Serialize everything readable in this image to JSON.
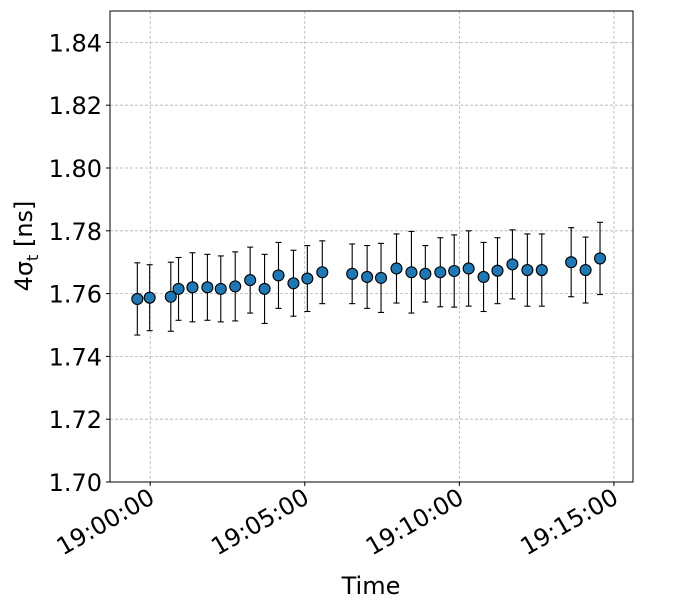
{
  "chart_data": {
    "type": "scatter",
    "title": "",
    "xlabel": "Time",
    "ylabel": "4σ",
    "ylabel_subscript": "t",
    "ylabel_unit": "[ns]",
    "ylim": [
      1.7,
      1.85
    ],
    "yticks": [
      1.7,
      1.72,
      1.74,
      1.76,
      1.78,
      1.8,
      1.82,
      1.84
    ],
    "ytick_labels": [
      "1.70",
      "1.72",
      "1.74",
      "1.76",
      "1.78",
      "1.80",
      "1.82",
      "1.84"
    ],
    "xlim": [
      "18:58:42",
      "19:15:37"
    ],
    "xticks": [
      "19:00:00",
      "19:05:00",
      "19:10:00",
      "19:15:00"
    ],
    "xtick_labels": [
      "19:00:00",
      "19:05:00",
      "19:10:00",
      "19:15:00"
    ],
    "grid": true,
    "marker_color": "#1f77b4",
    "points": [
      {
        "x": "18:59:35",
        "y": 1.7583,
        "err": 0.0115
      },
      {
        "x": "18:59:59",
        "y": 1.7587,
        "err": 0.0105
      },
      {
        "x": "19:00:40",
        "y": 1.759,
        "err": 0.011
      },
      {
        "x": "19:00:55",
        "y": 1.7615,
        "err": 0.01
      },
      {
        "x": "19:01:22",
        "y": 1.762,
        "err": 0.011
      },
      {
        "x": "19:01:51",
        "y": 1.762,
        "err": 0.0105
      },
      {
        "x": "19:02:17",
        "y": 1.7615,
        "err": 0.0105
      },
      {
        "x": "19:02:45",
        "y": 1.7623,
        "err": 0.011
      },
      {
        "x": "19:03:14",
        "y": 1.7643,
        "err": 0.0105
      },
      {
        "x": "19:03:42",
        "y": 1.7615,
        "err": 0.011
      },
      {
        "x": "19:04:09",
        "y": 1.7658,
        "err": 0.0105
      },
      {
        "x": "19:04:38",
        "y": 1.7633,
        "err": 0.0105
      },
      {
        "x": "19:05:05",
        "y": 1.7648,
        "err": 0.0105
      },
      {
        "x": "19:05:34",
        "y": 1.7668,
        "err": 0.01
      },
      {
        "x": "19:06:32",
        "y": 1.7663,
        "err": 0.0095
      },
      {
        "x": "19:07:01",
        "y": 1.7653,
        "err": 0.01
      },
      {
        "x": "19:07:28",
        "y": 1.765,
        "err": 0.011
      },
      {
        "x": "19:07:58",
        "y": 1.768,
        "err": 0.011
      },
      {
        "x": "19:08:27",
        "y": 1.7668,
        "err": 0.013
      },
      {
        "x": "19:08:54",
        "y": 1.7663,
        "err": 0.009
      },
      {
        "x": "19:09:23",
        "y": 1.7668,
        "err": 0.011
      },
      {
        "x": "19:09:50",
        "y": 1.7672,
        "err": 0.0115
      },
      {
        "x": "19:10:18",
        "y": 1.768,
        "err": 0.012
      },
      {
        "x": "19:10:47",
        "y": 1.7653,
        "err": 0.011
      },
      {
        "x": "19:11:14",
        "y": 1.7673,
        "err": 0.0105
      },
      {
        "x": "19:11:43",
        "y": 1.7693,
        "err": 0.011
      },
      {
        "x": "19:12:12",
        "y": 1.7675,
        "err": 0.0115
      },
      {
        "x": "19:12:40",
        "y": 1.7675,
        "err": 0.0115
      },
      {
        "x": "19:13:37",
        "y": 1.77,
        "err": 0.011
      },
      {
        "x": "19:14:05",
        "y": 1.7675,
        "err": 0.0105
      },
      {
        "x": "19:14:33",
        "y": 1.7712,
        "err": 0.0115
      }
    ]
  }
}
